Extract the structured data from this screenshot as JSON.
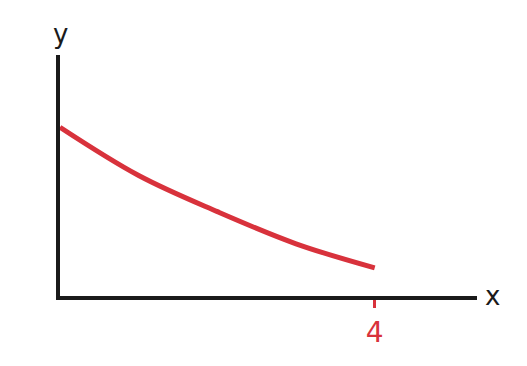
{
  "chart_data": {
    "type": "line",
    "x": [
      0,
      1,
      2,
      3,
      4
    ],
    "values": [
      2.1,
      1.5,
      1.05,
      0.65,
      0.35
    ],
    "color": "#d8323c",
    "xlabel": "x",
    "ylabel": "y",
    "xlim": [
      0,
      5.3
    ],
    "ylim": [
      0,
      3
    ],
    "xticks": [
      4
    ],
    "yticks": [],
    "tick_labels": "x",
    "grid": false
  }
}
